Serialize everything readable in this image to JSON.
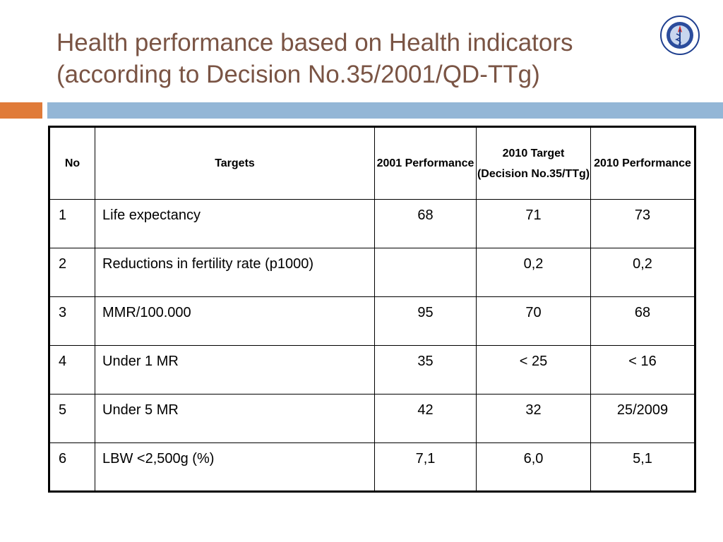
{
  "header": {
    "title_lines": [
      "Health performance based on Health indicators",
      "(according to Decision No.35/2001/QD-TTg)"
    ]
  },
  "table": {
    "columns": [
      "No",
      "Targets",
      "2001 Performance",
      [
        "2010 Target",
        "(Decision No.35/TTg)"
      ],
      "2010 Performance"
    ],
    "rows": [
      [
        1,
        "Life expectancy",
        68,
        71,
        73
      ],
      [
        2,
        "Reductions in fertility rate (p1000)",
        null,
        "0,2",
        "0,2"
      ],
      [
        3,
        "MMR/100.000",
        95,
        70,
        68
      ],
      [
        4,
        "Under 1 MR",
        35,
        "< 25",
        "< 16"
      ],
      [
        5,
        "Under 5  MR",
        42,
        32,
        "25/2009"
      ],
      [
        6,
        "LBW <2,500g  (%)",
        "7,1",
        "6,0",
        "5,1"
      ]
    ]
  }
}
